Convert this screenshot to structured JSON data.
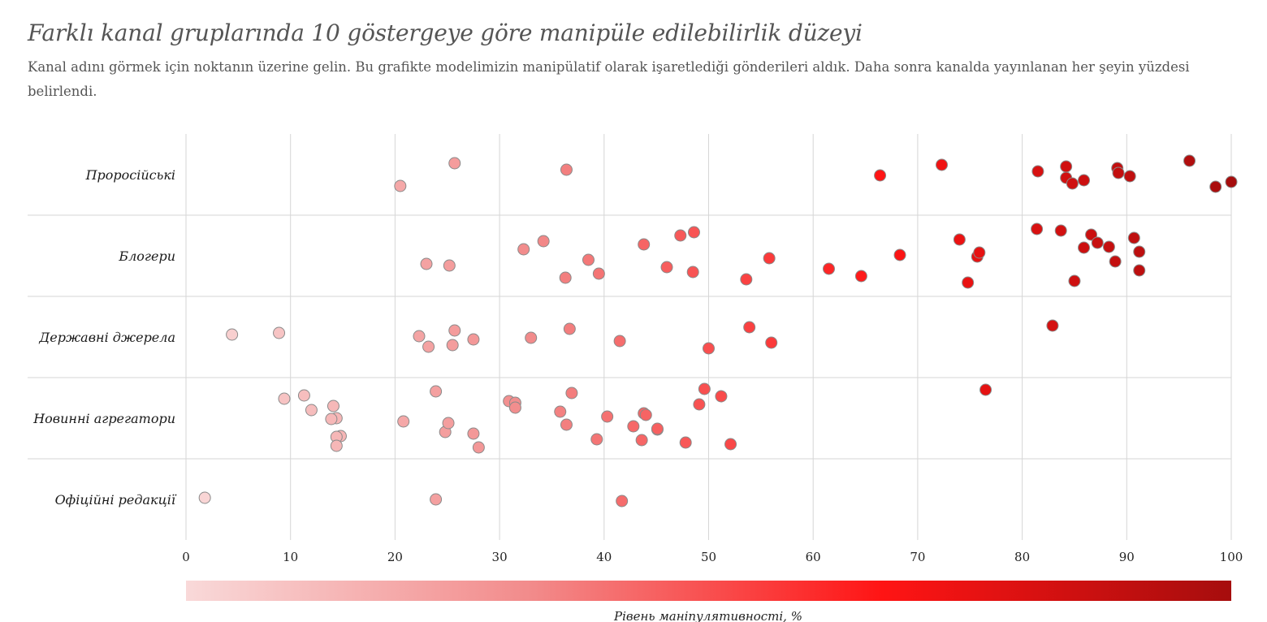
{
  "title": "Farklı kanal gruplarında 10 göstergeye göre manipüle edilebilirlik düzeyi",
  "subtitle": "Kanal adını görmek için noktanın üzerine gelin. Bu grafikte modelimizin manipülatif olarak işaretlediği gönderileri aldık. Daha sonra kanalda yayınlanan her şeyin yüzdesi belirlendi.",
  "chart_data": {
    "type": "scatter",
    "xlim": [
      0,
      100
    ],
    "x_ticks": [
      "0",
      "10",
      "20",
      "30",
      "40",
      "50",
      "60",
      "70",
      "80",
      "90",
      "100"
    ],
    "xlabel": "",
    "grid": true,
    "colorbar": {
      "label": "Рівень маніпулятивності, %",
      "range": [
        0,
        100
      ],
      "colors": [
        "#f9d9d9",
        "#f28a8a",
        "#ff1414",
        "#a60d0d"
      ],
      "placement": "bottom"
    },
    "series": [
      {
        "name": "Проросійські",
        "x": [
          25.7,
          36.4,
          20.5,
          66.4,
          72.3,
          81.5,
          84.2,
          84.2,
          84.8,
          85.9,
          89.1,
          89.2,
          90.3,
          96.0,
          98.5,
          100.0
        ],
        "jitter": [
          -0.14,
          -0.06,
          0.14,
          0.01,
          -0.12,
          -0.04,
          -0.1,
          0.04,
          0.11,
          0.07,
          -0.08,
          -0.02,
          0.02,
          -0.17,
          0.15,
          0.09
        ]
      },
      {
        "name": "Блогери",
        "x": [
          23.0,
          25.2,
          32.3,
          34.2,
          36.3,
          38.5,
          39.5,
          43.8,
          46.0,
          47.3,
          48.5,
          48.6,
          53.6,
          55.8,
          61.5,
          64.6,
          68.3,
          74.0,
          74.8,
          75.7,
          75.9,
          81.4,
          83.7,
          85.0,
          85.9,
          86.6,
          87.2,
          88.3,
          88.9,
          90.7,
          91.2,
          91.2
        ],
        "jitter": [
          0.1,
          0.12,
          -0.08,
          -0.18,
          0.27,
          0.05,
          0.22,
          -0.14,
          0.14,
          -0.25,
          0.2,
          -0.29,
          0.29,
          0.03,
          0.16,
          0.25,
          -0.01,
          -0.2,
          0.33,
          0.01,
          -0.04,
          -0.33,
          -0.31,
          0.31,
          -0.1,
          -0.26,
          -0.16,
          -0.11,
          0.07,
          -0.22,
          -0.05,
          0.18
        ]
      },
      {
        "name": "Державні джерела",
        "x": [
          4.4,
          8.9,
          22.3,
          23.2,
          25.5,
          25.7,
          27.5,
          33.0,
          36.7,
          41.5,
          50.0,
          53.9,
          56.0,
          82.9
        ],
        "jitter": [
          -0.03,
          -0.05,
          -0.01,
          0.12,
          0.1,
          -0.08,
          0.03,
          0.01,
          -0.1,
          0.05,
          0.14,
          -0.12,
          0.07,
          -0.14
        ]
      },
      {
        "name": "Новинні агрегатори",
        "x": [
          9.4,
          11.3,
          12.0,
          14.1,
          14.4,
          13.9,
          14.8,
          14.4,
          14.4,
          20.8,
          23.9,
          24.8,
          25.1,
          27.5,
          28.0,
          30.9,
          31.5,
          31.5,
          35.8,
          36.4,
          36.9,
          39.3,
          40.3,
          42.8,
          43.6,
          43.8,
          44.0,
          45.1,
          45.1,
          47.8,
          49.1,
          49.6,
          51.2,
          52.1,
          76.5
        ],
        "jitter": [
          -0.24,
          -0.28,
          -0.1,
          -0.15,
          0.0,
          0.01,
          0.22,
          0.23,
          0.34,
          0.04,
          -0.33,
          0.17,
          0.06,
          0.19,
          0.36,
          -0.21,
          -0.19,
          -0.13,
          -0.08,
          0.08,
          -0.31,
          0.26,
          -0.02,
          0.1,
          0.27,
          -0.06,
          -0.04,
          0.14,
          0.13,
          0.3,
          -0.17,
          -0.36,
          -0.27,
          0.32,
          -0.35
        ]
      },
      {
        "name": "Офіційні редакції",
        "x": [
          1.8,
          23.9,
          41.7
        ],
        "jitter": [
          -0.02,
          0.0,
          0.02
        ]
      }
    ]
  }
}
